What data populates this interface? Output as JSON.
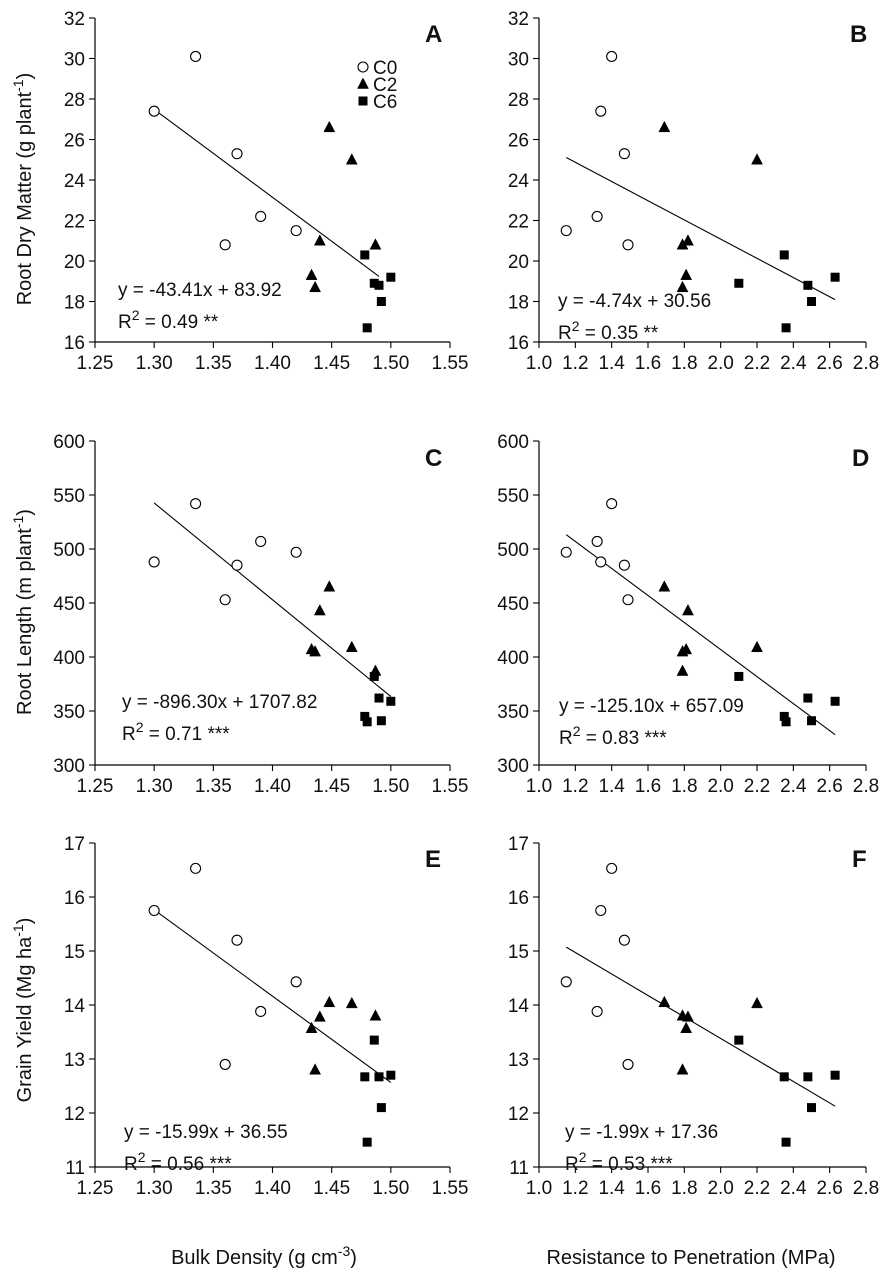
{
  "chart_data": [
    {
      "type": "scatter",
      "panel": "A",
      "xlabel": "",
      "ylabel": "Root Dry Matter (g plant^-1)",
      "xlim": [
        1.25,
        1.55
      ],
      "ylim": [
        16,
        32
      ],
      "xticks": [
        "1.25",
        "1.30",
        "1.35",
        "1.40",
        "1.45",
        "1.50",
        "1.55"
      ],
      "yticks": [
        "16",
        "18",
        "20",
        "22",
        "24",
        "26",
        "28",
        "30",
        "32"
      ],
      "series": [
        {
          "name": "C0",
          "points": [
            [
              1.3,
              27.4
            ],
            [
              1.335,
              30.1
            ],
            [
              1.36,
              20.8
            ],
            [
              1.37,
              25.3
            ],
            [
              1.39,
              22.2
            ],
            [
              1.42,
              21.5
            ]
          ]
        },
        {
          "name": "C2",
          "points": [
            [
              1.433,
              19.3
            ],
            [
              1.436,
              18.7
            ],
            [
              1.44,
              21.0
            ],
            [
              1.448,
              26.6
            ],
            [
              1.467,
              25.0
            ],
            [
              1.487,
              20.8
            ]
          ]
        },
        {
          "name": "C6",
          "points": [
            [
              1.478,
              20.3
            ],
            [
              1.48,
              16.7
            ],
            [
              1.486,
              18.9
            ],
            [
              1.49,
              18.8
            ],
            [
              1.492,
              18.0
            ],
            [
              1.5,
              19.2
            ]
          ]
        }
      ],
      "fit": {
        "slope": -43.41,
        "intercept": 83.92,
        "x_range": [
          1.3,
          1.49
        ]
      },
      "equation": "y = -43.41x + 83.92",
      "r2_label": "R",
      "r2_exp": "2",
      "r2_value": " = 0.49 **",
      "legend": [
        "C0",
        "C2",
        "C6"
      ]
    },
    {
      "type": "scatter",
      "panel": "B",
      "xlabel": "",
      "ylabel": "",
      "xlim": [
        1.0,
        2.8
      ],
      "ylim": [
        16,
        32
      ],
      "xticks": [
        "1.0",
        "1.2",
        "1.4",
        "1.6",
        "1.8",
        "2.0",
        "2.2",
        "2.4",
        "2.6",
        "2.8"
      ],
      "yticks": [
        "16",
        "18",
        "20",
        "22",
        "24",
        "26",
        "28",
        "30",
        "32"
      ],
      "series": [
        {
          "name": "C0",
          "points": [
            [
              1.15,
              21.5
            ],
            [
              1.32,
              22.2
            ],
            [
              1.34,
              27.4
            ],
            [
              1.4,
              30.1
            ],
            [
              1.47,
              25.3
            ],
            [
              1.49,
              20.8
            ]
          ]
        },
        {
          "name": "C2",
          "points": [
            [
              1.69,
              26.6
            ],
            [
              1.79,
              18.7
            ],
            [
              1.79,
              20.8
            ],
            [
              1.81,
              19.3
            ],
            [
              1.82,
              21.0
            ],
            [
              2.2,
              25.0
            ]
          ]
        },
        {
          "name": "C6",
          "points": [
            [
              2.1,
              18.9
            ],
            [
              2.35,
              20.3
            ],
            [
              2.36,
              16.7
            ],
            [
              2.48,
              18.8
            ],
            [
              2.5,
              18.0
            ],
            [
              2.63,
              19.2
            ]
          ]
        }
      ],
      "fit": {
        "slope": -4.74,
        "intercept": 30.56,
        "x_range": [
          1.15,
          2.63
        ]
      },
      "equation": "y = -4.74x + 30.56",
      "r2_label": "R",
      "r2_exp": "2",
      "r2_value": " = 0.35 **"
    },
    {
      "type": "scatter",
      "panel": "C",
      "xlabel": "",
      "ylabel": "Root Length (m plant^-1)",
      "xlim": [
        1.25,
        1.55
      ],
      "ylim": [
        300,
        600
      ],
      "xticks": [
        "1.25",
        "1.30",
        "1.35",
        "1.40",
        "1.45",
        "1.50",
        "1.55"
      ],
      "yticks": [
        "300",
        "350",
        "400",
        "450",
        "500",
        "550",
        "600"
      ],
      "series": [
        {
          "name": "C0",
          "points": [
            [
              1.3,
              488
            ],
            [
              1.335,
              542
            ],
            [
              1.36,
              453
            ],
            [
              1.37,
              485
            ],
            [
              1.39,
              507
            ],
            [
              1.42,
              497
            ]
          ]
        },
        {
          "name": "C2",
          "points": [
            [
              1.433,
              407
            ],
            [
              1.436,
              405
            ],
            [
              1.44,
              443
            ],
            [
              1.448,
              465
            ],
            [
              1.467,
              409
            ],
            [
              1.487,
              387
            ]
          ]
        },
        {
          "name": "C6",
          "points": [
            [
              1.478,
              345
            ],
            [
              1.48,
              340
            ],
            [
              1.486,
              382
            ],
            [
              1.49,
              362
            ],
            [
              1.492,
              341
            ],
            [
              1.5,
              359
            ]
          ]
        }
      ],
      "fit": {
        "slope": -896.3,
        "intercept": 1707.82,
        "x_range": [
          1.3,
          1.5
        ]
      },
      "equation": "y = -896.30x + 1707.82",
      "r2_label": "R",
      "r2_exp": "2",
      "r2_value": " = 0.71 ***"
    },
    {
      "type": "scatter",
      "panel": "D",
      "xlabel": "",
      "ylabel": "",
      "xlim": [
        1.0,
        2.8
      ],
      "ylim": [
        300,
        600
      ],
      "xticks": [
        "1.0",
        "1.2",
        "1.4",
        "1.6",
        "1.8",
        "2.0",
        "2.2",
        "2.4",
        "2.6",
        "2.8"
      ],
      "yticks": [
        "300",
        "350",
        "400",
        "450",
        "500",
        "550",
        "600"
      ],
      "series": [
        {
          "name": "C0",
          "points": [
            [
              1.15,
              497
            ],
            [
              1.32,
              507
            ],
            [
              1.34,
              488
            ],
            [
              1.4,
              542
            ],
            [
              1.47,
              485
            ],
            [
              1.49,
              453
            ]
          ]
        },
        {
          "name": "C2",
          "points": [
            [
              1.69,
              465
            ],
            [
              1.79,
              387
            ],
            [
              1.79,
              405
            ],
            [
              1.81,
              407
            ],
            [
              1.82,
              443
            ],
            [
              2.2,
              409
            ]
          ]
        },
        {
          "name": "C6",
          "points": [
            [
              2.1,
              382
            ],
            [
              2.35,
              345
            ],
            [
              2.36,
              340
            ],
            [
              2.48,
              362
            ],
            [
              2.5,
              341
            ],
            [
              2.63,
              359
            ]
          ]
        }
      ],
      "fit": {
        "slope": -125.1,
        "intercept": 657.09,
        "x_range": [
          1.15,
          2.63
        ]
      },
      "equation": "y = -125.10x + 657.09",
      "r2_label": "R",
      "r2_exp": "2",
      "r2_value": " = 0.83 ***"
    },
    {
      "type": "scatter",
      "panel": "E",
      "xlabel": "Bulk Density (g cm^-3)",
      "ylabel": "Grain Yield (Mg ha^-1)",
      "xlim": [
        1.25,
        1.55
      ],
      "ylim": [
        11,
        17
      ],
      "xticks": [
        "1.25",
        "1.30",
        "1.35",
        "1.40",
        "1.45",
        "1.50",
        "1.55"
      ],
      "yticks": [
        "11",
        "12",
        "13",
        "14",
        "15",
        "16",
        "17"
      ],
      "series": [
        {
          "name": "C0",
          "points": [
            [
              1.3,
              15.75
            ],
            [
              1.335,
              16.53
            ],
            [
              1.36,
              12.9
            ],
            [
              1.37,
              15.2
            ],
            [
              1.39,
              13.88
            ],
            [
              1.42,
              14.43
            ]
          ]
        },
        {
          "name": "C2",
          "points": [
            [
              1.433,
              13.57
            ],
            [
              1.436,
              12.8
            ],
            [
              1.44,
              13.78
            ],
            [
              1.448,
              14.05
            ],
            [
              1.467,
              14.03
            ],
            [
              1.487,
              13.8
            ]
          ]
        },
        {
          "name": "C6",
          "points": [
            [
              1.478,
              12.67
            ],
            [
              1.48,
              11.46
            ],
            [
              1.486,
              13.35
            ],
            [
              1.49,
              12.67
            ],
            [
              1.492,
              12.1
            ],
            [
              1.5,
              12.7
            ]
          ]
        }
      ],
      "fit": {
        "slope": -15.99,
        "intercept": 36.55,
        "x_range": [
          1.3,
          1.5
        ]
      },
      "equation": "y = -15.99x + 36.55",
      "r2_label": "R",
      "r2_exp": "2",
      "r2_value": " = 0.56 ***"
    },
    {
      "type": "scatter",
      "panel": "F",
      "xlabel": "Resistance to Penetration (MPa)",
      "ylabel": "",
      "xlim": [
        1.0,
        2.8
      ],
      "ylim": [
        11,
        17
      ],
      "xticks": [
        "1.0",
        "1.2",
        "1.4",
        "1.6",
        "1.8",
        "2.0",
        "2.2",
        "2.4",
        "2.6",
        "2.8"
      ],
      "yticks": [
        "11",
        "12",
        "13",
        "14",
        "15",
        "16",
        "17"
      ],
      "series": [
        {
          "name": "C0",
          "points": [
            [
              1.15,
              14.43
            ],
            [
              1.32,
              13.88
            ],
            [
              1.34,
              15.75
            ],
            [
              1.4,
              16.53
            ],
            [
              1.47,
              15.2
            ],
            [
              1.49,
              12.9
            ]
          ]
        },
        {
          "name": "C2",
          "points": [
            [
              1.69,
              14.05
            ],
            [
              1.79,
              12.8
            ],
            [
              1.79,
              13.8
            ],
            [
              1.81,
              13.57
            ],
            [
              1.82,
              13.78
            ],
            [
              2.2,
              14.03
            ]
          ]
        },
        {
          "name": "C6",
          "points": [
            [
              2.1,
              13.35
            ],
            [
              2.35,
              12.67
            ],
            [
              2.36,
              11.46
            ],
            [
              2.48,
              12.67
            ],
            [
              2.5,
              12.1
            ],
            [
              2.63,
              12.7
            ]
          ]
        }
      ],
      "fit": {
        "slope": -1.99,
        "intercept": 17.36,
        "x_range": [
          1.15,
          2.63
        ]
      },
      "equation": "y = -1.99x + 17.36",
      "r2_label": "R",
      "r2_exp": "2",
      "r2_value": " = 0.53 ***"
    }
  ],
  "axis_titles": {
    "a_ylabel_main": "Root Dry Matter (g plant",
    "a_ylabel_sup": "-1",
    "a_ylabel_end": ")",
    "c_ylabel_main": "Root Length (m plant",
    "c_ylabel_sup": "-1",
    "c_ylabel_end": ")",
    "e_ylabel_main": "Grain Yield (Mg ha",
    "e_ylabel_sup": "-1",
    "e_ylabel_end": ")",
    "e_xlabel_main": "Bulk Density (g cm",
    "e_xlabel_sup": "-3",
    "e_xlabel_end": ")",
    "f_xlabel": "Resistance to Penetration (MPa)"
  }
}
